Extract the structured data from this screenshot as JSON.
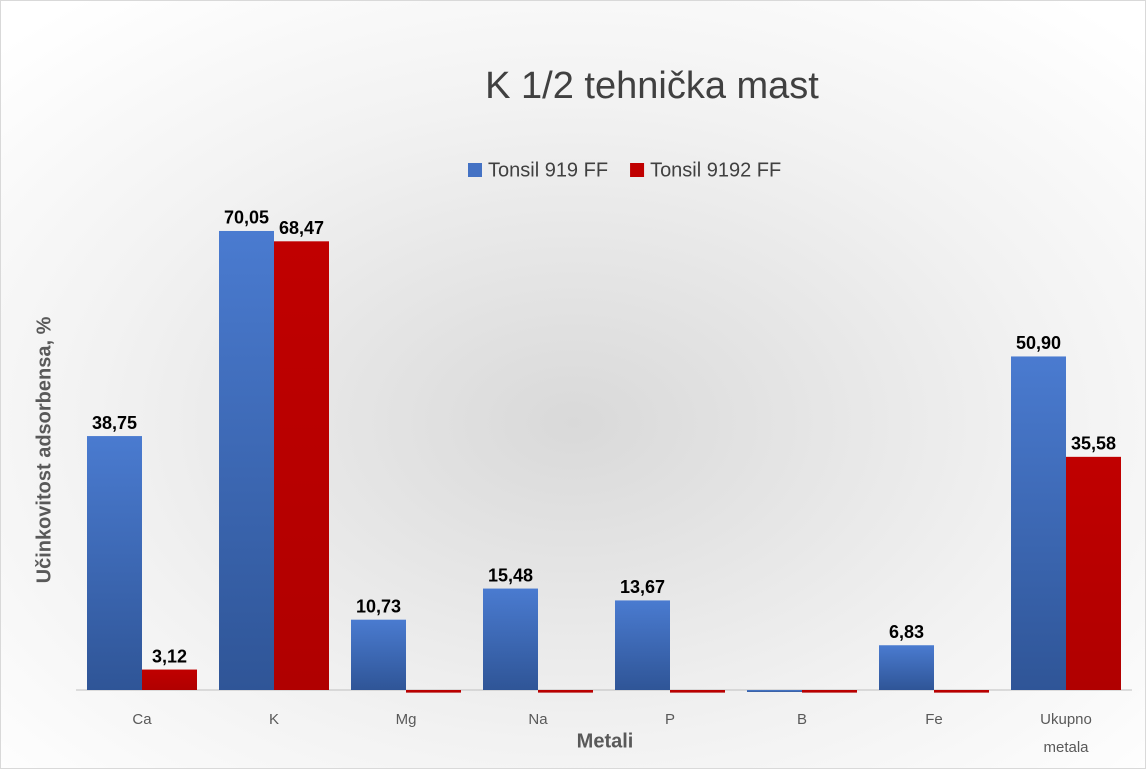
{
  "chart_data": {
    "type": "bar",
    "title": "K 1/2 tehnička mast",
    "x_label": "Metali",
    "y_label": "Učinkovitost adsorbensa, %",
    "categories": [
      "Ca",
      "K",
      "Mg",
      "Na",
      "P",
      "B",
      "Fe",
      "Ukupno metala"
    ],
    "series": [
      {
        "name": "Tonsil 919 FF",
        "color": "#4472c4",
        "values": [
          38.75,
          70.05,
          10.73,
          15.48,
          13.67,
          -0.3,
          6.83,
          50.9
        ],
        "value_labels": [
          "38,75",
          "70,05",
          "10,73",
          "15,48",
          "13,67",
          null,
          "6,83",
          "50,90"
        ]
      },
      {
        "name": "Tonsil 9192 FF",
        "color": "#c00000",
        "values": [
          3.12,
          68.47,
          -0.4,
          -0.4,
          -0.4,
          -0.4,
          -0.4,
          35.58
        ],
        "value_labels": [
          "3,12",
          "68,47",
          null,
          null,
          null,
          null,
          null,
          "35,58"
        ]
      }
    ],
    "legend": "top"
  }
}
